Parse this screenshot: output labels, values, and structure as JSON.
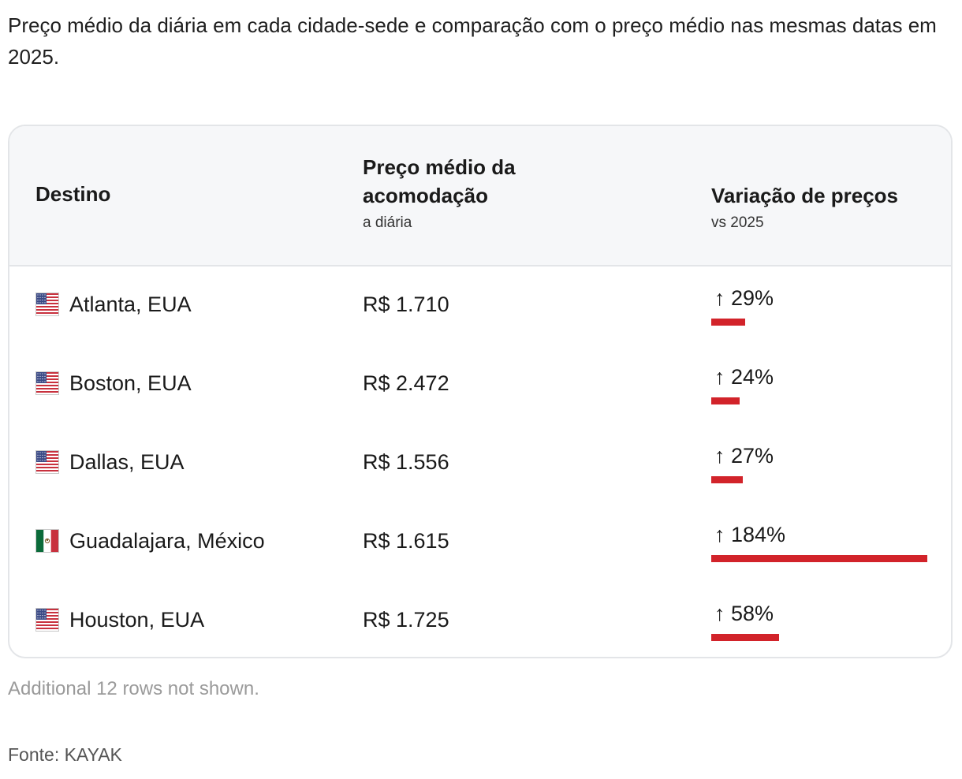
{
  "subtitle": "Preço médio da diária em cada cidade-sede e comparação com o preço médio nas mesmas datas em 2025.",
  "table": {
    "headers": {
      "destino": "Destino",
      "preco": "Preço médio da acomodação",
      "preco_sub": "a diária",
      "variacao": "Variação de preços",
      "variacao_sub": "vs 2025"
    },
    "rows": [
      {
        "flag": "us-flag-icon",
        "destino": "Atlanta, EUA",
        "preco": "R$ 1.710",
        "variacao_label": "↑ 29%",
        "variacao": 29
      },
      {
        "flag": "us-flag-icon",
        "destino": "Boston, EUA",
        "preco": "R$ 2.472",
        "variacao_label": "↑ 24%",
        "variacao": 24
      },
      {
        "flag": "us-flag-icon",
        "destino": "Dallas, EUA",
        "preco": "R$ 1.556",
        "variacao_label": "↑ 27%",
        "variacao": 27
      },
      {
        "flag": "mexico-flag-icon",
        "destino": "Guadalajara, México",
        "preco": "R$ 1.615",
        "variacao_label": "↑ 184%",
        "variacao": 184
      },
      {
        "flag": "us-flag-icon",
        "destino": "Houston, EUA",
        "preco": "R$ 1.725",
        "variacao_label": "↑ 58%",
        "variacao": 58
      }
    ]
  },
  "note": "Additional 12 rows not shown.",
  "source": "Fonte: KAYAK",
  "colors": {
    "bar": "#d2232a",
    "header_bg": "#f6f7f9",
    "border": "#e3e5e8"
  },
  "chart_data": {
    "type": "table",
    "columns": [
      "Destino",
      "Preço médio da acomodação",
      "Variação de preços"
    ],
    "categories": [
      "Atlanta, EUA",
      "Boston, EUA",
      "Dallas, EUA",
      "Guadalajara, México",
      "Houston, EUA"
    ],
    "series": [
      {
        "name": "Preço médio da acomodação",
        "values": [
          1710,
          2472,
          1556,
          1615,
          1725
        ]
      },
      {
        "name": "Variação de preços",
        "values": [
          29,
          24,
          27,
          184,
          58
        ]
      }
    ]
  }
}
